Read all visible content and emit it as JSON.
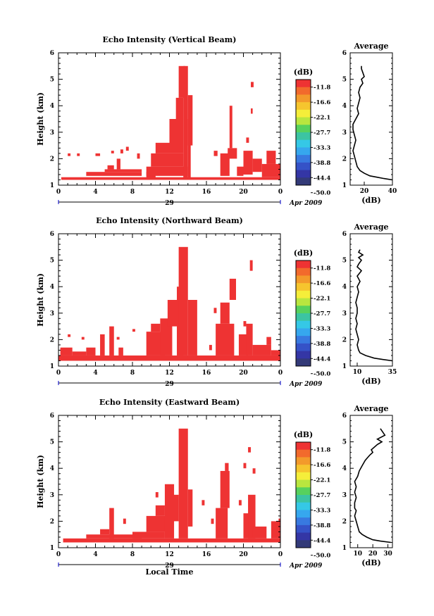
{
  "chart_data": {
    "type": "heatmap",
    "colorbar": {
      "unit": "(dB)",
      "labels": [
        "-11.8",
        "-16.6",
        "-22.1",
        "-27.7",
        "-33.3",
        "-38.8",
        "-44.4",
        "-50.0"
      ],
      "colors": [
        "#ee3333",
        "#f26a2c",
        "#f39a2b",
        "#f6c52e",
        "#f5ee3a",
        "#b9e63f",
        "#57d15d",
        "#3cc4a2",
        "#35c8e6",
        "#36a7ee",
        "#3879e0",
        "#3552c7",
        "#3436a5",
        "#333a78"
      ]
    },
    "date_label": "Apr 2009",
    "day_label": "29",
    "xlabel": "Local Time",
    "ylabel": "Height (km)",
    "xticks": [
      "0",
      "4",
      "8",
      "12",
      "16",
      "20",
      "0"
    ],
    "yticks": [
      "1",
      "2",
      "3",
      "4",
      "5",
      "6"
    ],
    "panels": [
      {
        "title": "Echo Intensity (Vertical Beam)",
        "xlim": [
          0,
          24
        ],
        "ylim": [
          1,
          6
        ],
        "cells": [
          [
            0.3,
            24,
            1.2,
            1.3
          ],
          [
            3.0,
            9.0,
            1.35,
            1.5
          ],
          [
            5.0,
            9.0,
            1.5,
            1.6
          ],
          [
            5.3,
            6.0,
            1.6,
            1.75
          ],
          [
            9.5,
            10.5,
            1.2,
            1.5
          ],
          [
            9.5,
            14.0,
            1.35,
            1.7
          ],
          [
            10.0,
            13.5,
            1.7,
            2.2
          ],
          [
            10.5,
            12.0,
            2.2,
            2.6
          ],
          [
            12.0,
            13.5,
            2.2,
            3.5
          ],
          [
            12.7,
            13.5,
            3.5,
            4.3
          ],
          [
            13.0,
            13.7,
            4.3,
            5.5
          ],
          [
            13.5,
            14.0,
            1.2,
            5.5
          ],
          [
            14.0,
            14.5,
            2.5,
            4.4
          ],
          [
            14.0,
            14.3,
            1.2,
            3.5
          ],
          [
            17.5,
            18.5,
            1.35,
            2.2
          ],
          [
            18.3,
            19.3,
            2.0,
            2.4
          ],
          [
            18.5,
            18.8,
            2.4,
            4.0
          ],
          [
            19.3,
            20.0,
            1.35,
            1.7
          ],
          [
            20.0,
            21.0,
            1.4,
            2.3
          ],
          [
            21.0,
            22.0,
            1.5,
            2.0
          ],
          [
            22.0,
            24.0,
            1.3,
            1.8
          ],
          [
            22.5,
            23.5,
            1.8,
            2.3
          ],
          [
            1.0,
            1.3,
            2.1,
            2.2
          ],
          [
            2.0,
            2.3,
            2.1,
            2.2
          ],
          [
            4.0,
            4.5,
            2.1,
            2.2
          ],
          [
            5.7,
            6.0,
            2.2,
            2.3
          ],
          [
            6.7,
            7.0,
            2.2,
            2.35
          ],
          [
            6.3,
            6.7,
            1.6,
            2.0
          ],
          [
            7.3,
            7.6,
            2.3,
            2.45
          ],
          [
            8.5,
            8.8,
            2.0,
            2.2
          ],
          [
            16.8,
            17.2,
            2.1,
            2.3
          ],
          [
            20.3,
            20.6,
            2.6,
            2.8
          ],
          [
            20.8,
            21.0,
            3.7,
            3.9
          ],
          [
            20.8,
            21.1,
            4.7,
            4.9
          ]
        ],
        "average": {
          "xlim": [
            10,
            40
          ],
          "xticks": [
            "20",
            "40"
          ],
          "ylim": [
            1,
            6
          ],
          "yticks": [
            "1",
            "2",
            "3",
            "4",
            "5",
            "6"
          ],
          "xlabel": "(dB)",
          "title": "Average",
          "x": [
            40,
            34,
            29,
            24,
            20,
            17,
            15,
            14,
            13,
            12,
            13,
            14,
            13,
            12,
            12,
            14,
            16,
            15,
            16,
            17,
            16,
            17,
            19,
            18,
            20,
            19,
            18,
            18
          ],
          "y": [
            1.2,
            1.25,
            1.3,
            1.35,
            1.45,
            1.55,
            1.7,
            1.9,
            2.1,
            2.3,
            2.5,
            2.7,
            2.9,
            3.1,
            3.3,
            3.5,
            3.7,
            3.9,
            4.1,
            4.3,
            4.5,
            4.7,
            4.85,
            5.0,
            5.1,
            5.25,
            5.4,
            5.5
          ]
        }
      },
      {
        "title": "Echo Intensity (Northward Beam)",
        "xlim": [
          0,
          24
        ],
        "ylim": [
          1,
          6
        ],
        "cells": [
          [
            0.0,
            24,
            1.2,
            1.4
          ],
          [
            0.2,
            1.5,
            1.4,
            1.7
          ],
          [
            1.5,
            3.0,
            1.4,
            1.55
          ],
          [
            3.0,
            4.0,
            1.4,
            1.7
          ],
          [
            4.5,
            5.0,
            1.4,
            2.2
          ],
          [
            5.5,
            6.0,
            1.4,
            2.5
          ],
          [
            6.5,
            7.0,
            1.4,
            1.7
          ],
          [
            9.5,
            11.5,
            1.4,
            2.3
          ],
          [
            10.0,
            11.0,
            2.3,
            2.6
          ],
          [
            11.0,
            12.3,
            1.4,
            2.8
          ],
          [
            11.8,
            13.0,
            2.5,
            3.5
          ],
          [
            12.8,
            13.5,
            1.4,
            4.0
          ],
          [
            13.0,
            14.0,
            1.4,
            5.5
          ],
          [
            14.0,
            15.0,
            1.4,
            3.5
          ],
          [
            17.0,
            19.0,
            1.4,
            2.6
          ],
          [
            17.5,
            18.5,
            2.6,
            3.4
          ],
          [
            18.5,
            19.2,
            3.5,
            4.3
          ],
          [
            19.5,
            20.5,
            1.4,
            2.2
          ],
          [
            20.3,
            21.0,
            1.4,
            2.6
          ],
          [
            21.0,
            23.0,
            1.4,
            1.8
          ],
          [
            23.0,
            24.0,
            1.4,
            1.6
          ],
          [
            1.0,
            1.3,
            2.1,
            2.2
          ],
          [
            2.5,
            2.8,
            2.0,
            2.1
          ],
          [
            6.3,
            6.6,
            2.0,
            2.1
          ],
          [
            8.0,
            8.3,
            2.3,
            2.4
          ],
          [
            16.3,
            16.6,
            1.6,
            1.8
          ],
          [
            16.8,
            17.1,
            3.0,
            3.2
          ],
          [
            20.0,
            20.3,
            2.5,
            2.7
          ],
          [
            20.7,
            21.0,
            4.6,
            5.0
          ],
          [
            22.5,
            23.0,
            1.8,
            2.1
          ]
        ],
        "average": {
          "xlim": [
            5,
            35
          ],
          "xticks": [
            "10",
            "35"
          ],
          "ylim": [
            1,
            6
          ],
          "yticks": [
            "1",
            "2",
            "3",
            "4",
            "5",
            "6"
          ],
          "xlabel": "(dB)",
          "title": "Average",
          "x": [
            35,
            28,
            22,
            16,
            12,
            11,
            10,
            11,
            10,
            9,
            10,
            9,
            10,
            10,
            9,
            10,
            11,
            10,
            12,
            10,
            13,
            10,
            11,
            13,
            11,
            14,
            11,
            12
          ],
          "y": [
            1.2,
            1.25,
            1.3,
            1.4,
            1.5,
            1.6,
            1.8,
            2.0,
            2.2,
            2.4,
            2.6,
            2.8,
            3.0,
            3.2,
            3.4,
            3.6,
            3.8,
            4.0,
            4.2,
            4.4,
            4.6,
            4.75,
            4.85,
            5.0,
            5.1,
            5.2,
            5.3,
            5.4
          ]
        }
      },
      {
        "title": "Echo Intensity (Eastward Beam)",
        "xlim": [
          0,
          24
        ],
        "ylim": [
          1,
          6
        ],
        "cells": [
          [
            0.5,
            24,
            1.2,
            1.35
          ],
          [
            3.0,
            9.0,
            1.35,
            1.5
          ],
          [
            4.5,
            5.5,
            1.5,
            1.7
          ],
          [
            5.5,
            6.0,
            1.35,
            2.5
          ],
          [
            8.0,
            11.5,
            1.35,
            1.6
          ],
          [
            9.5,
            12.0,
            1.6,
            2.2
          ],
          [
            10.5,
            11.5,
            2.2,
            2.6
          ],
          [
            11.5,
            12.5,
            1.35,
            3.4
          ],
          [
            12.0,
            13.0,
            2.0,
            3.0
          ],
          [
            13.0,
            14.0,
            1.35,
            5.5
          ],
          [
            14.0,
            14.5,
            1.8,
            3.2
          ],
          [
            17.0,
            18.3,
            1.35,
            2.5
          ],
          [
            17.5,
            18.5,
            2.5,
            3.9
          ],
          [
            18.0,
            18.4,
            3.9,
            4.2
          ],
          [
            20.0,
            21.0,
            1.35,
            2.3
          ],
          [
            20.5,
            21.3,
            1.35,
            3.0
          ],
          [
            21.0,
            22.5,
            1.35,
            1.8
          ],
          [
            23.0,
            24.0,
            1.35,
            2.0
          ],
          [
            7.0,
            7.3,
            1.9,
            2.1
          ],
          [
            10.5,
            10.8,
            2.9,
            3.1
          ],
          [
            15.5,
            15.8,
            2.6,
            2.8
          ],
          [
            16.5,
            16.8,
            1.9,
            2.1
          ],
          [
            19.5,
            19.8,
            2.6,
            2.8
          ],
          [
            20.0,
            20.3,
            4.0,
            4.2
          ],
          [
            20.5,
            20.8,
            4.6,
            4.8
          ],
          [
            21.0,
            21.3,
            3.8,
            4.0
          ],
          [
            23.8,
            24.0,
            2.0,
            2.1
          ]
        ],
        "average": {
          "xlim": [
            5,
            33
          ],
          "xticks": [
            "10",
            "20",
            "30"
          ],
          "ylim": [
            1,
            6
          ],
          "yticks": [
            "1",
            "2",
            "3",
            "4",
            "5",
            "6"
          ],
          "xlabel": "(dB)",
          "title": "Average",
          "x": [
            32,
            25,
            20,
            16,
            13,
            11,
            10,
            9,
            8,
            9,
            8,
            8,
            9,
            8,
            9,
            8,
            10,
            11,
            13,
            15,
            18,
            20,
            19,
            23,
            26,
            23,
            28,
            25
          ],
          "y": [
            1.2,
            1.25,
            1.3,
            1.4,
            1.5,
            1.6,
            1.8,
            2.0,
            2.2,
            2.4,
            2.5,
            2.7,
            2.9,
            3.1,
            3.3,
            3.5,
            3.7,
            3.9,
            4.1,
            4.3,
            4.5,
            4.6,
            4.7,
            4.9,
            5.0,
            5.1,
            5.25,
            5.5
          ]
        }
      }
    ]
  }
}
